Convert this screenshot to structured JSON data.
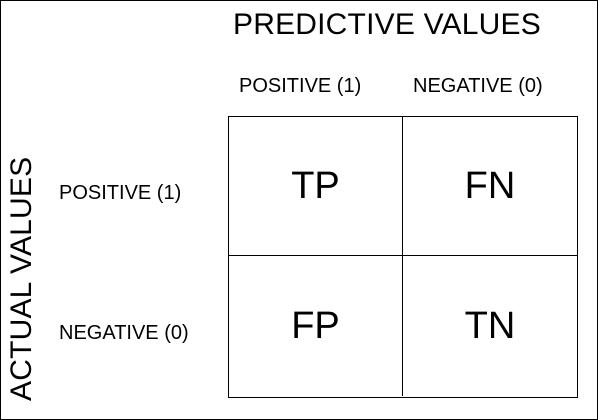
{
  "predicted_title": "PREDICTIVE VALUES",
  "actual_title": "ACTUAL VALUES",
  "columns": [
    "POSITIVE (1)",
    "NEGATIVE (0)"
  ],
  "rows": [
    "POSITIVE (1)",
    "NEGATIVE (0)"
  ],
  "cells": [
    [
      "TP",
      "FN"
    ],
    [
      "FP",
      "TN"
    ]
  ]
}
